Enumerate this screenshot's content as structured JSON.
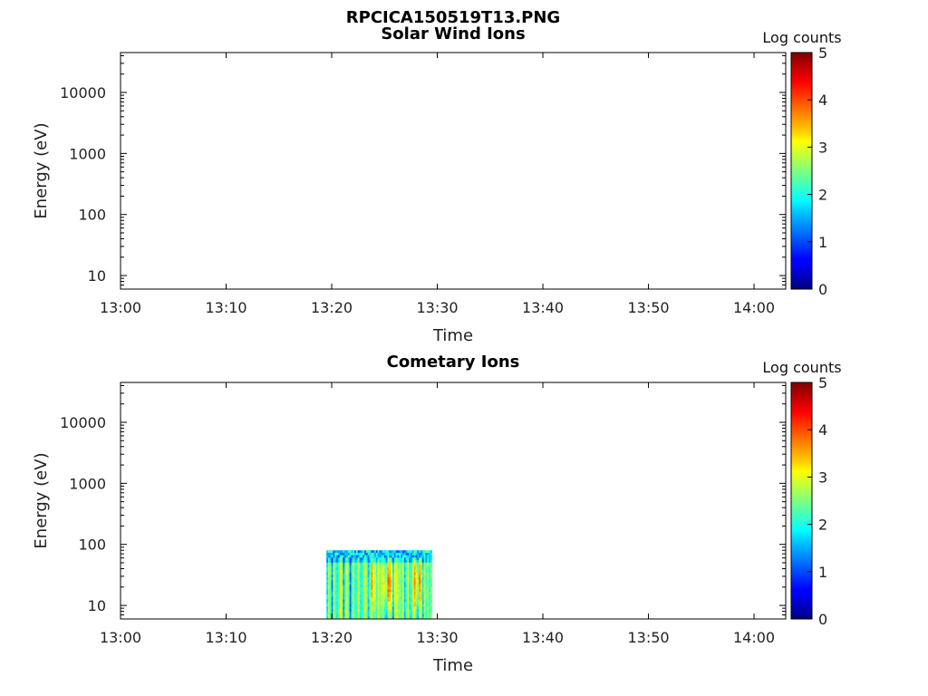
{
  "figure_title": "RPCICA150519T13.PNG",
  "chart_data": [
    {
      "type": "heatmap",
      "title": "Solar Wind Ions",
      "xlabel": "Time",
      "ylabel": "Energy (eV)",
      "x_ticks": [
        "13:00",
        "13:10",
        "13:20",
        "13:30",
        "13:40",
        "13:50",
        "14:00"
      ],
      "xlim": [
        "13:00",
        "14:03"
      ],
      "y_ticks": [
        {
          "value": 10,
          "label": "10"
        },
        {
          "value": 100,
          "label": "100"
        },
        {
          "value": 1000,
          "label": "1000"
        },
        {
          "value": 10000,
          "label": "10000"
        }
      ],
      "ylim": [
        6,
        45000
      ],
      "y_scale": "log",
      "colorbar": {
        "label": "Log counts",
        "min": 0,
        "max": 5,
        "ticks": [
          "0",
          "1",
          "2",
          "3",
          "4",
          "5"
        ],
        "colormap": "jet"
      },
      "data": []
    },
    {
      "type": "heatmap",
      "title": "Cometary Ions",
      "xlabel": "Time",
      "ylabel": "Energy (eV)",
      "x_ticks": [
        "13:00",
        "13:10",
        "13:20",
        "13:30",
        "13:40",
        "13:50",
        "14:00"
      ],
      "xlim": [
        "13:00",
        "14:03"
      ],
      "y_ticks": [
        {
          "value": 10,
          "label": "10"
        },
        {
          "value": 100,
          "label": "100"
        },
        {
          "value": 1000,
          "label": "1000"
        },
        {
          "value": 10000,
          "label": "10000"
        }
      ],
      "ylim": [
        6,
        45000
      ],
      "y_scale": "log",
      "colorbar": {
        "label": "Log counts",
        "min": 0,
        "max": 5,
        "ticks": [
          "0",
          "1",
          "2",
          "3",
          "4",
          "5"
        ],
        "colormap": "jet"
      },
      "data": [
        {
          "time_start": "13:19:30",
          "time_end": "13:29:30",
          "energy_min": 6,
          "energy_max": 80,
          "log_counts_typical": 2.6,
          "log_counts_peak": 3.9
        }
      ]
    }
  ]
}
